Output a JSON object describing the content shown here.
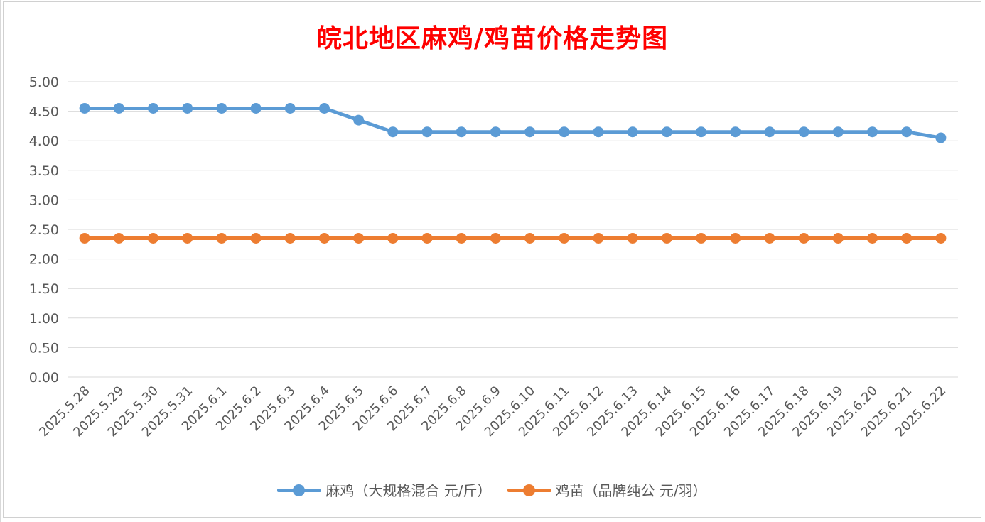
{
  "chart_data": {
    "type": "line",
    "title": "皖北地区麻鸡/鸡苗价格走势图",
    "title_color": "#ff0000",
    "categories": [
      "2025.5.28",
      "2025.5.29",
      "2025.5.30",
      "2025.5.31",
      "2025.6.1",
      "2025.6.2",
      "2025.6.3",
      "2025.6.4",
      "2025.6.5",
      "2025.6.6",
      "2025.6.7",
      "2025.6.8",
      "2025.6.9",
      "2025.6.10",
      "2025.6.11",
      "2025.6.12",
      "2025.6.13",
      "2025.6.14",
      "2025.6.15",
      "2025.6.16",
      "2025.6.17",
      "2025.6.18",
      "2025.6.19",
      "2025.6.20",
      "2025.6.21",
      "2025.6.22"
    ],
    "series": [
      {
        "name": "麻鸡（大规格混合 元/斤）",
        "color": "#5b9bd5",
        "values": [
          4.55,
          4.55,
          4.55,
          4.55,
          4.55,
          4.55,
          4.55,
          4.55,
          4.35,
          4.15,
          4.15,
          4.15,
          4.15,
          4.15,
          4.15,
          4.15,
          4.15,
          4.15,
          4.15,
          4.15,
          4.15,
          4.15,
          4.15,
          4.15,
          4.15,
          4.05
        ]
      },
      {
        "name": "鸡苗（品牌纯公 元/羽）",
        "color": "#ed7d31",
        "values": [
          2.35,
          2.35,
          2.35,
          2.35,
          2.35,
          2.35,
          2.35,
          2.35,
          2.35,
          2.35,
          2.35,
          2.35,
          2.35,
          2.35,
          2.35,
          2.35,
          2.35,
          2.35,
          2.35,
          2.35,
          2.35,
          2.35,
          2.35,
          2.35,
          2.35,
          2.35
        ]
      }
    ],
    "y_ticks": [
      "0.00",
      "0.50",
      "1.00",
      "1.50",
      "2.00",
      "2.50",
      "3.00",
      "3.50",
      "4.00",
      "4.50",
      "5.00"
    ],
    "ylim": [
      0,
      5
    ],
    "grid": true,
    "legend_position": "bottom"
  }
}
